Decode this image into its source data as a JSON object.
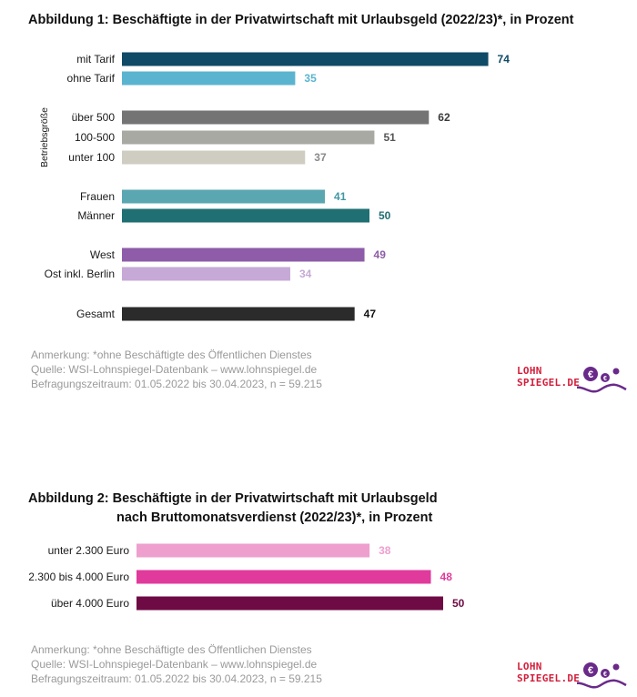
{
  "figure1": {
    "title": "Abbildung 1:  Beschäftigte in der Privatwirtschaft mit Urlaubsgeld (2022/23)*, in Prozent",
    "group_label": "Betriebsgröße",
    "notes": [
      "Anmerkung: *ohne Beschäftigte des Öffentlichen Dienstes",
      "Quelle:  WSI-Lohnspiegel-Datenbank – www.lohnspiegel.de",
      "Befragungszeitraum: 01.05.2022 bis 30.04.2023, n = 59.215"
    ]
  },
  "figure2": {
    "title_line1": "Abbildung 2:  Beschäftigte in der Privatwirtschaft mit Urlaubsgeld",
    "title_line2": "nach Bruttomonatsverdienst (2022/23)*, in Prozent",
    "notes": [
      "Anmerkung: *ohne Beschäftigte des Öffentlichen Dienstes",
      "Quelle:  WSI-Lohnspiegel-Datenbank – www.lohnspiegel.de",
      "Befragungszeitraum: 01.05.2022 bis 30.04.2023, n = 59.215"
    ]
  },
  "logo": {
    "line1": "LOHN",
    "line2": "SPIEGEL.DE",
    "color": "#d21e3a",
    "wave_color": "#6a2a8a"
  },
  "chart_data": [
    {
      "type": "bar",
      "orientation": "horizontal",
      "title": "Abbildung 1:  Beschäftigte in der Privatwirtschaft mit Urlaubsgeld (2022/23)*, in Prozent",
      "categories": [
        "mit Tarif",
        "ohne Tarif",
        "über 500",
        "100-500",
        "unter 100",
        "Frauen",
        "Männer",
        "West",
        "Ost inkl. Berlin",
        "Gesamt"
      ],
      "values": [
        74,
        35,
        62,
        51,
        37,
        41,
        50,
        49,
        34,
        47
      ],
      "colors": [
        "#0f4a66",
        "#5ab4cf",
        "#747474",
        "#a9a9a3",
        "#cfcdc2",
        "#5aa7b2",
        "#1f6f73",
        "#8e5ca8",
        "#c6a9d6",
        "#2b2b2b"
      ],
      "label_colors": [
        "#0f4a66",
        "#5ab4cf",
        "#3a3a3a",
        "#555555",
        "#8a8a8a",
        "#3f97a3",
        "#1f6f73",
        "#8e5ca8",
        "#c6a9d6",
        "#111111"
      ],
      "group_labels": [
        {
          "label": "Betriebsgröße",
          "categories": [
            "über 500",
            "100-500",
            "unter 100"
          ]
        }
      ],
      "xlim": [
        0,
        100
      ]
    },
    {
      "type": "bar",
      "orientation": "horizontal",
      "title": "Abbildung 2:  Beschäftigte in der Privatwirtschaft mit Urlaubsgeld nach Bruttomonatsverdienst (2022/23)*, in Prozent",
      "categories": [
        "unter 2.300 Euro",
        "2.300 bis 4.000 Euro",
        "über 4.000 Euro"
      ],
      "values": [
        38,
        48,
        50
      ],
      "colors": [
        "#ee9fce",
        "#e03a9c",
        "#6e0a44"
      ],
      "label_colors": [
        "#ee9fce",
        "#e03a9c",
        "#6e0a44"
      ],
      "xlim": [
        0,
        100
      ]
    }
  ]
}
